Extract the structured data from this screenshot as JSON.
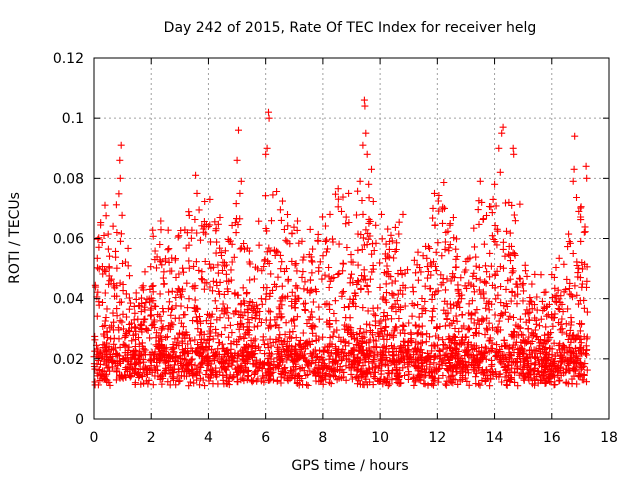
{
  "chart_data": {
    "type": "scatter",
    "title": "Day 242 of 2015, Rate Of TEC Index for receiver helg",
    "xlabel": "GPS time / hours",
    "ylabel": "ROTI / TECUs",
    "xlim": [
      0,
      18
    ],
    "ylim": [
      0,
      0.12
    ],
    "xticks": [
      0,
      2,
      4,
      6,
      8,
      10,
      12,
      14,
      16,
      18
    ],
    "xtick_labels": [
      "0",
      "2",
      "4",
      "6",
      "8",
      "10",
      "12",
      "14",
      "16",
      "18"
    ],
    "yticks": [
      0,
      0.02,
      0.04,
      0.06,
      0.08,
      0.1,
      0.12
    ],
    "ytick_labels": [
      "0",
      "0.02",
      "0.04",
      "0.06",
      "0.08",
      "0.1",
      "0.12"
    ],
    "grid": true,
    "marker": "+",
    "series": [
      {
        "name": "ROTI",
        "color": "#ff0000",
        "x_range": [
          0.0,
          17.25
        ],
        "typical_range": [
          0.005,
          0.04
        ],
        "notable_points": [
          {
            "x": 0.95,
            "y": 0.091
          },
          {
            "x": 0.9,
            "y": 0.086
          },
          {
            "x": 0.92,
            "y": 0.08
          },
          {
            "x": 0.35,
            "y": 0.061
          },
          {
            "x": 0.8,
            "y": 0.062
          },
          {
            "x": 2.3,
            "y": 0.058
          },
          {
            "x": 3.55,
            "y": 0.081
          },
          {
            "x": 3.6,
            "y": 0.075
          },
          {
            "x": 4.05,
            "y": 0.073
          },
          {
            "x": 4.0,
            "y": 0.064
          },
          {
            "x": 5.05,
            "y": 0.096
          },
          {
            "x": 5.0,
            "y": 0.086
          },
          {
            "x": 5.15,
            "y": 0.079
          },
          {
            "x": 5.1,
            "y": 0.075
          },
          {
            "x": 6.1,
            "y": 0.102
          },
          {
            "x": 6.12,
            "y": 0.1
          },
          {
            "x": 6.05,
            "y": 0.09
          },
          {
            "x": 6.0,
            "y": 0.088
          },
          {
            "x": 6.55,
            "y": 0.066
          },
          {
            "x": 7.3,
            "y": 0.049
          },
          {
            "x": 8.25,
            "y": 0.068
          },
          {
            "x": 8.65,
            "y": 0.069
          },
          {
            "x": 8.9,
            "y": 0.075
          },
          {
            "x": 9.45,
            "y": 0.106
          },
          {
            "x": 9.47,
            "y": 0.104
          },
          {
            "x": 9.5,
            "y": 0.095
          },
          {
            "x": 9.4,
            "y": 0.091
          },
          {
            "x": 9.55,
            "y": 0.088
          },
          {
            "x": 9.7,
            "y": 0.083
          },
          {
            "x": 9.6,
            "y": 0.078
          },
          {
            "x": 9.3,
            "y": 0.079
          },
          {
            "x": 10.05,
            "y": 0.068
          },
          {
            "x": 10.8,
            "y": 0.068
          },
          {
            "x": 11.9,
            "y": 0.075
          },
          {
            "x": 11.85,
            "y": 0.07
          },
          {
            "x": 12.25,
            "y": 0.07
          },
          {
            "x": 12.45,
            "y": 0.065
          },
          {
            "x": 12.3,
            "y": 0.062
          },
          {
            "x": 13.5,
            "y": 0.079
          },
          {
            "x": 13.55,
            "y": 0.072
          },
          {
            "x": 14.0,
            "y": 0.078
          },
          {
            "x": 13.95,
            "y": 0.073
          },
          {
            "x": 14.3,
            "y": 0.097
          },
          {
            "x": 14.25,
            "y": 0.095
          },
          {
            "x": 14.15,
            "y": 0.09
          },
          {
            "x": 14.2,
            "y": 0.082
          },
          {
            "x": 14.65,
            "y": 0.09
          },
          {
            "x": 14.67,
            "y": 0.088
          },
          {
            "x": 14.6,
            "y": 0.071
          },
          {
            "x": 14.5,
            "y": 0.072
          },
          {
            "x": 15.0,
            "y": 0.045
          },
          {
            "x": 16.0,
            "y": 0.048
          },
          {
            "x": 16.8,
            "y": 0.094
          },
          {
            "x": 16.78,
            "y": 0.083
          },
          {
            "x": 16.75,
            "y": 0.079
          },
          {
            "x": 16.75,
            "y": 0.055
          },
          {
            "x": 17.2,
            "y": 0.084
          },
          {
            "x": 17.22,
            "y": 0.08
          },
          {
            "x": 17.05,
            "y": 0.052
          },
          {
            "x": 17.0,
            "y": 0.047
          }
        ]
      }
    ]
  }
}
